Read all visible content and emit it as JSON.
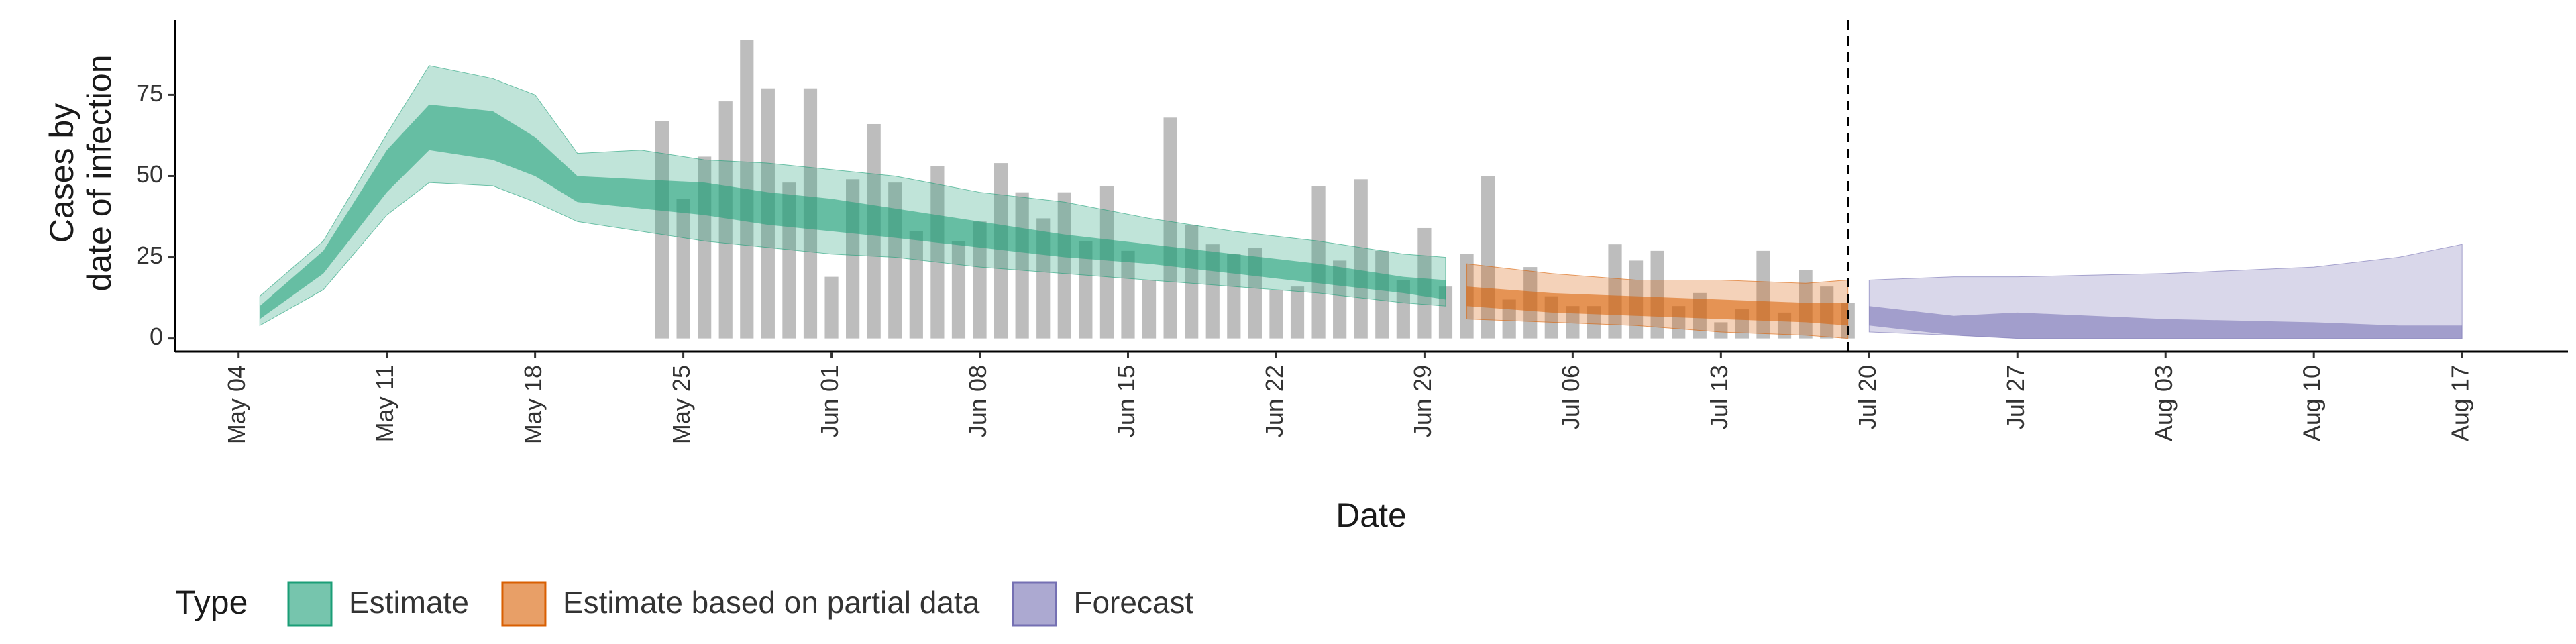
{
  "chart_data": {
    "type": "ribbon",
    "xlabel": "Date",
    "ylabel": [
      "Cases by",
      "date of infection"
    ],
    "legend_title": "Type",
    "legend": "bottom-left",
    "xlim": [
      "05-01",
      "08-22"
    ],
    "ylim": [
      -4,
      98
    ],
    "yticks": [
      0,
      25,
      50,
      75
    ],
    "xticks": [
      {
        "value": "05-04",
        "label": "May 04"
      },
      {
        "value": "05-11",
        "label": "May 11"
      },
      {
        "value": "05-18",
        "label": "May 18"
      },
      {
        "value": "05-25",
        "label": "May 25"
      },
      {
        "value": "06-01",
        "label": "Jun 01"
      },
      {
        "value": "06-08",
        "label": "Jun 08"
      },
      {
        "value": "06-15",
        "label": "Jun 15"
      },
      {
        "value": "06-22",
        "label": "Jun 22"
      },
      {
        "value": "06-29",
        "label": "Jun 29"
      },
      {
        "value": "07-06",
        "label": "Jul 06"
      },
      {
        "value": "07-13",
        "label": "Jul 13"
      },
      {
        "value": "07-20",
        "label": "Jul 20"
      },
      {
        "value": "07-27",
        "label": "Jul 27"
      },
      {
        "value": "08-03",
        "label": "Aug 03"
      },
      {
        "value": "08-10",
        "label": "Aug 10"
      },
      {
        "value": "08-17",
        "label": "Aug 17"
      }
    ],
    "vline": "07-19",
    "bars": {
      "color": "#bdbdbd",
      "x": [
        "05-24",
        "05-25",
        "05-26",
        "05-27",
        "05-28",
        "05-29",
        "05-30",
        "05-31",
        "06-01",
        "06-02",
        "06-03",
        "06-04",
        "06-05",
        "06-06",
        "06-07",
        "06-08",
        "06-09",
        "06-10",
        "06-11",
        "06-12",
        "06-13",
        "06-14",
        "06-15",
        "06-16",
        "06-17",
        "06-18",
        "06-19",
        "06-20",
        "06-21",
        "06-22",
        "06-23",
        "06-24",
        "06-25",
        "06-26",
        "06-27",
        "06-28",
        "06-29",
        "06-30",
        "07-01",
        "07-02",
        "07-03",
        "07-04",
        "07-05",
        "07-06",
        "07-07",
        "07-08",
        "07-09",
        "07-10",
        "07-11",
        "07-12",
        "07-13",
        "07-14",
        "07-15",
        "07-16",
        "07-17",
        "07-18",
        "07-19"
      ],
      "values": [
        67,
        43,
        56,
        73,
        92,
        77,
        48,
        77,
        19,
        49,
        66,
        48,
        33,
        53,
        30,
        36,
        54,
        45,
        37,
        45,
        30,
        47,
        27,
        18,
        68,
        35,
        29,
        26,
        28,
        15,
        16,
        47,
        24,
        49,
        27,
        18,
        34,
        16,
        26,
        50,
        12,
        22,
        13,
        10,
        10,
        29,
        24,
        27,
        10,
        14,
        5,
        9,
        27,
        8,
        21,
        16,
        11
      ]
    },
    "series": [
      {
        "name": "Estimate",
        "color": "#1b9e77",
        "x": [
          "05-05",
          "05-08",
          "05-11",
          "05-13",
          "05-16",
          "05-18",
          "05-20",
          "05-23",
          "05-26",
          "05-29",
          "06-01",
          "06-04",
          "06-08",
          "06-12",
          "06-16",
          "06-20",
          "06-24",
          "06-28",
          "06-30"
        ],
        "outer_lower": [
          4,
          15,
          38,
          48,
          47,
          42,
          36,
          33,
          30,
          28,
          26,
          25,
          22,
          20,
          18,
          16,
          14,
          11,
          10
        ],
        "outer_upper": [
          13,
          30,
          63,
          84,
          80,
          75,
          57,
          58,
          55,
          54,
          52,
          50,
          45,
          42,
          37,
          33,
          30,
          26,
          25
        ],
        "inner_lower": [
          6,
          20,
          45,
          58,
          55,
          50,
          42,
          40,
          38,
          35,
          33,
          31,
          28,
          25,
          23,
          20,
          17,
          14,
          12
        ],
        "inner_upper": [
          10,
          27,
          58,
          72,
          70,
          62,
          50,
          49,
          48,
          45,
          43,
          40,
          36,
          32,
          29,
          26,
          23,
          19,
          18
        ]
      },
      {
        "name": "Estimate based on partial data",
        "color": "#d95f02",
        "x": [
          "07-01",
          "07-05",
          "07-09",
          "07-13",
          "07-17",
          "07-19"
        ],
        "outer_lower": [
          6,
          5,
          4,
          2,
          1,
          0
        ],
        "outer_upper": [
          23,
          20,
          18,
          18,
          17,
          18
        ],
        "inner_lower": [
          10,
          8,
          7,
          6,
          5,
          4
        ],
        "inner_upper": [
          16,
          14,
          13,
          12,
          11,
          11
        ]
      },
      {
        "name": "Forecast",
        "color": "#7570b3",
        "x": [
          "07-20",
          "07-24",
          "07-27",
          "08-03",
          "08-10",
          "08-14",
          "08-17"
        ],
        "outer_lower": [
          2,
          1,
          0,
          0,
          0,
          0,
          0
        ],
        "outer_upper": [
          18,
          19,
          19,
          20,
          22,
          25,
          29
        ],
        "inner_lower": [
          4,
          1,
          0,
          0,
          0,
          0,
          0
        ],
        "inner_upper": [
          10,
          7,
          8,
          6,
          5,
          4,
          4
        ]
      }
    ]
  }
}
